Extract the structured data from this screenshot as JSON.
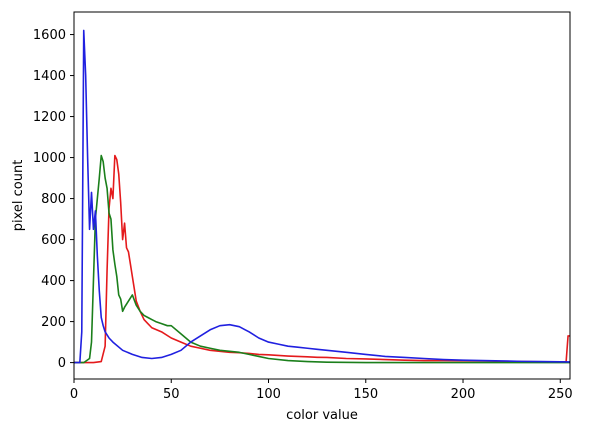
{
  "chart_data": {
    "type": "line",
    "title": "",
    "xlabel": "color value",
    "ylabel": "pixel count",
    "xlim": [
      0,
      255
    ],
    "ylim": [
      -80,
      1710
    ],
    "xticks": [
      0,
      50,
      100,
      150,
      200,
      250
    ],
    "yticks": [
      0,
      200,
      400,
      600,
      800,
      1000,
      1200,
      1400,
      1600
    ],
    "grid": false,
    "legend": "none",
    "series": [
      {
        "color": "#e41a1c",
        "x": [
          0,
          5,
          10,
          14,
          16,
          17,
          18,
          19,
          20,
          21,
          22,
          23,
          24,
          25,
          26,
          27,
          28,
          29,
          30,
          32,
          34,
          36,
          38,
          40,
          45,
          50,
          55,
          60,
          65,
          70,
          75,
          80,
          85,
          90,
          95,
          100,
          105,
          110,
          115,
          120,
          125,
          130,
          140,
          150,
          160,
          170,
          180,
          190,
          200,
          210,
          220,
          230,
          240,
          250,
          253,
          254,
          255
        ],
        "y": [
          0,
          0,
          0,
          5,
          80,
          450,
          750,
          850,
          800,
          1010,
          990,
          920,
          780,
          600,
          680,
          560,
          540,
          480,
          420,
          300,
          250,
          210,
          190,
          170,
          150,
          120,
          100,
          80,
          70,
          60,
          55,
          50,
          48,
          45,
          40,
          38,
          35,
          32,
          30,
          28,
          26,
          25,
          20,
          18,
          15,
          12,
          10,
          10,
          9,
          8,
          6,
          5,
          4,
          3,
          3,
          130,
          130
        ]
      },
      {
        "color": "#1b7f1b",
        "x": [
          0,
          5,
          8,
          9,
          10,
          11,
          12,
          13,
          14,
          15,
          16,
          17,
          18,
          19,
          20,
          21,
          22,
          23,
          24,
          25,
          26,
          28,
          30,
          32,
          34,
          36,
          38,
          40,
          42,
          45,
          48,
          50,
          55,
          60,
          65,
          70,
          75,
          80,
          85,
          90,
          95,
          100,
          110,
          120,
          130,
          150,
          200,
          255
        ],
        "y": [
          0,
          0,
          20,
          100,
          400,
          700,
          800,
          900,
          1010,
          980,
          900,
          850,
          730,
          700,
          550,
          480,
          420,
          330,
          310,
          250,
          270,
          300,
          330,
          280,
          250,
          230,
          220,
          210,
          200,
          190,
          180,
          180,
          140,
          100,
          80,
          70,
          60,
          55,
          50,
          40,
          30,
          20,
          10,
          5,
          2,
          0,
          0,
          0
        ]
      },
      {
        "color": "#2020e0",
        "x": [
          0,
          3,
          4,
          5,
          6,
          7,
          8,
          9,
          10,
          11,
          12,
          13,
          14,
          15,
          16,
          18,
          20,
          25,
          30,
          35,
          40,
          45,
          50,
          55,
          60,
          65,
          70,
          75,
          80,
          85,
          88,
          90,
          95,
          100,
          105,
          110,
          115,
          120,
          125,
          130,
          140,
          150,
          160,
          170,
          180,
          190,
          200,
          210,
          220,
          230,
          240,
          250,
          255
        ],
        "y": [
          0,
          0,
          150,
          1620,
          1400,
          1000,
          650,
          830,
          650,
          740,
          520,
          350,
          220,
          180,
          150,
          120,
          100,
          60,
          40,
          25,
          20,
          25,
          40,
          60,
          100,
          130,
          160,
          180,
          185,
          175,
          160,
          150,
          120,
          100,
          90,
          80,
          75,
          70,
          65,
          60,
          50,
          40,
          30,
          25,
          20,
          15,
          12,
          10,
          8,
          6,
          5,
          4,
          3
        ]
      }
    ]
  }
}
